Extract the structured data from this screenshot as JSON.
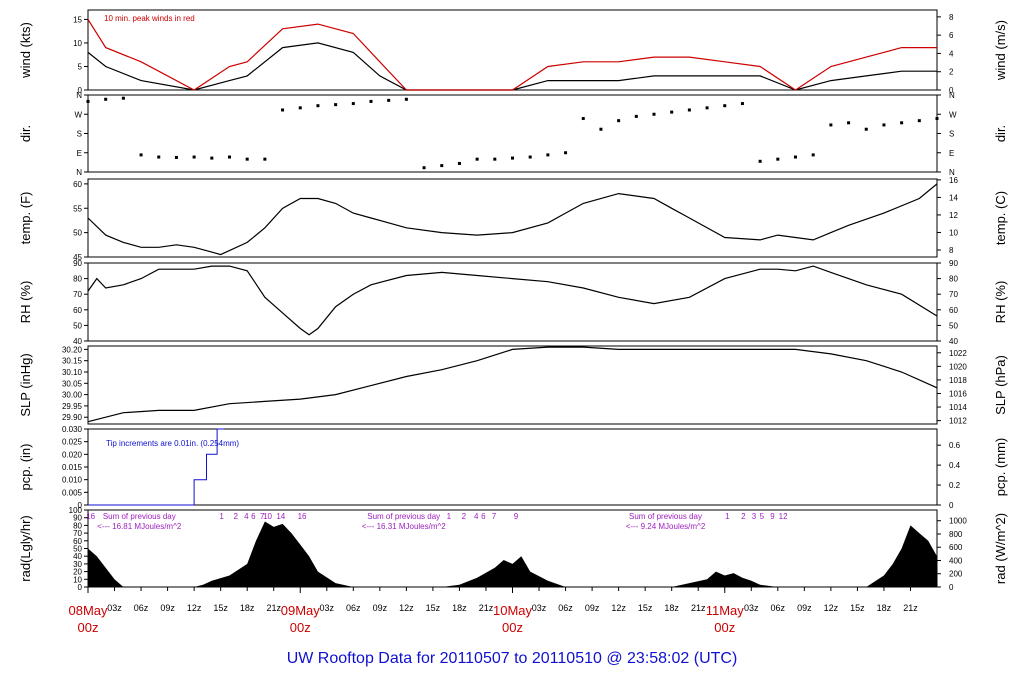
{
  "title": "UW Rooftop Data for 20110507  to  20110510 @ 23:58:02  (UTC)",
  "colors": {
    "black": "#000000",
    "red": "#cc0000",
    "blue": "#1010d0",
    "purple": "#a020c0"
  },
  "chart_data": [
    {
      "type": "line",
      "id": "wind",
      "ylabel": "wind (kts)",
      "ylabel2": "wind (m/s)",
      "ylim": [
        0,
        17
      ],
      "yticks": [
        0,
        5,
        10,
        15
      ],
      "ylim2": [
        0,
        8.75
      ],
      "yticks2": [
        0,
        2,
        4,
        6,
        8
      ],
      "annotation": "10 min. peak winds in red",
      "series": [
        {
          "color": "#000000",
          "x": [
            0,
            2,
            6,
            12,
            16,
            18,
            22,
            26,
            30,
            33,
            36,
            40,
            44,
            48,
            52,
            56,
            60,
            64,
            68,
            72,
            76,
            80,
            84,
            88,
            92,
            96
          ],
          "values": [
            8,
            5,
            2,
            0,
            2,
            3,
            9,
            10,
            8,
            3,
            0,
            0,
            0,
            0,
            2,
            2,
            2,
            3,
            3,
            3,
            3,
            0,
            2,
            3,
            4,
            4
          ]
        },
        {
          "color": "#cc0000",
          "x": [
            0,
            2,
            6,
            12,
            16,
            18,
            22,
            26,
            30,
            33,
            36,
            40,
            44,
            48,
            52,
            56,
            60,
            64,
            68,
            72,
            76,
            80,
            84,
            88,
            92,
            96
          ],
          "values": [
            15,
            9,
            6,
            0,
            5,
            6,
            13,
            14,
            12,
            6,
            0,
            0,
            0,
            0,
            5,
            6,
            6,
            7,
            7,
            6,
            5,
            0,
            5,
            7,
            9,
            9
          ]
        }
      ]
    },
    {
      "type": "scatter",
      "id": "dir",
      "ylabel": "dir.",
      "ylabel2": "dir.",
      "ylim": [
        0,
        360
      ],
      "yticks": [
        0,
        90,
        180,
        270,
        360
      ],
      "ytick_labels": [
        "N",
        "E",
        "S",
        "W",
        "N"
      ],
      "x": [
        0,
        2,
        4,
        6,
        8,
        10,
        12,
        14,
        16,
        18,
        20,
        22,
        24,
        26,
        28,
        30,
        32,
        34,
        36,
        38,
        40,
        42,
        44,
        46,
        48,
        50,
        52,
        54,
        56,
        58,
        60,
        62,
        64,
        66,
        68,
        70,
        72,
        74,
        76,
        78,
        80,
        82,
        84,
        86,
        88,
        90,
        92,
        94,
        96
      ],
      "values": [
        330,
        340,
        345,
        80,
        70,
        68,
        70,
        65,
        70,
        60,
        60,
        290,
        300,
        310,
        315,
        320,
        330,
        335,
        340,
        20,
        30,
        40,
        60,
        60,
        65,
        70,
        80,
        90,
        250,
        200,
        240,
        260,
        270,
        280,
        290,
        300,
        310,
        320,
        50,
        60,
        70,
        80,
        220,
        230,
        200,
        220,
        230,
        240,
        250
      ]
    },
    {
      "type": "line",
      "id": "temp",
      "ylabel": "temp. (F)",
      "ylabel2": "temp. (C)",
      "ylim": [
        45,
        61
      ],
      "yticks": [
        45,
        50,
        55,
        60
      ],
      "ylim2": [
        7.2,
        16.1
      ],
      "yticks2": [
        8,
        10,
        12,
        14,
        16
      ],
      "x": [
        0,
        2,
        4,
        6,
        8,
        10,
        12,
        14,
        15,
        18,
        20,
        22,
        24,
        26,
        28,
        30,
        32,
        36,
        40,
        44,
        48,
        52,
        54,
        56,
        60,
        64,
        66,
        68,
        72,
        76,
        78,
        80,
        82,
        84,
        86,
        90,
        94,
        96
      ],
      "values": [
        53,
        49.5,
        48,
        47,
        47,
        47.5,
        47,
        46,
        45.5,
        48,
        51,
        55,
        57,
        57,
        56,
        54,
        53,
        51,
        50,
        49.5,
        50,
        52,
        54,
        56,
        58,
        57,
        55,
        53,
        49,
        48.5,
        49.5,
        49,
        48.5,
        50,
        51.5,
        54,
        57,
        60
      ]
    },
    {
      "type": "line",
      "id": "rh",
      "ylabel": "RH (%)",
      "ylabel2": "RH (%)",
      "ylim": [
        40,
        90
      ],
      "yticks": [
        40,
        50,
        60,
        70,
        80,
        90
      ],
      "x": [
        0,
        1,
        2,
        4,
        6,
        8,
        10,
        12,
        14,
        16,
        18,
        20,
        22,
        24,
        25,
        26,
        28,
        30,
        32,
        36,
        40,
        44,
        48,
        52,
        56,
        60,
        64,
        68,
        72,
        76,
        78,
        80,
        82,
        84,
        88,
        92,
        96
      ],
      "values": [
        72,
        80,
        74,
        76,
        80,
        86,
        86,
        86,
        88,
        88,
        85,
        68,
        58,
        48,
        44,
        48,
        62,
        70,
        76,
        82,
        84,
        82,
        80,
        78,
        74,
        68,
        64,
        68,
        80,
        86,
        86,
        85,
        88,
        84,
        76,
        70,
        56
      ]
    },
    {
      "type": "line",
      "id": "slp",
      "ylabel": "SLP (inHg)",
      "ylabel2": "SLP (hPa)",
      "ylim": [
        29.87,
        30.215
      ],
      "yticks": [
        29.9,
        29.95,
        30.0,
        30.05,
        30.1,
        30.15,
        30.2
      ],
      "ytick_labels": [
        "29.90",
        "29.95",
        "30.00",
        "30.05",
        "30.10",
        "30.15",
        "30.20"
      ],
      "ylim2": [
        1011.5,
        1023.0
      ],
      "yticks2": [
        1012,
        1014,
        1016,
        1018,
        1020,
        1022
      ],
      "x": [
        0,
        4,
        8,
        12,
        16,
        20,
        24,
        28,
        32,
        36,
        40,
        44,
        48,
        52,
        56,
        60,
        64,
        68,
        72,
        76,
        80,
        84,
        88,
        92,
        96
      ],
      "values": [
        29.88,
        29.92,
        29.93,
        29.93,
        29.96,
        29.97,
        29.98,
        30.0,
        30.04,
        30.08,
        30.11,
        30.15,
        30.2,
        30.21,
        30.21,
        30.2,
        30.2,
        30.2,
        30.2,
        30.2,
        30.2,
        30.18,
        30.15,
        30.1,
        30.03
      ]
    },
    {
      "type": "line",
      "id": "pcp",
      "ylabel": "pcp. (in)",
      "ylabel2": "pcp. (mm)",
      "ylim": [
        0,
        0.03
      ],
      "yticks": [
        0,
        0.005,
        0.01,
        0.015,
        0.02,
        0.025,
        0.03
      ],
      "ytick_labels": [
        "0",
        "0.005",
        "0.010",
        "0.015",
        "0.020",
        "0.025",
        "0.030"
      ],
      "ylim2": [
        0,
        0.762
      ],
      "yticks2": [
        0,
        0.2,
        0.4,
        0.6
      ],
      "annotation": "Tip increments are 0.01in. (0.254mm)",
      "x": [
        0,
        12.0,
        12.0,
        13.4,
        13.4,
        14.6,
        14.6,
        15.4,
        15.4
      ],
      "values": [
        0,
        0,
        0.01,
        0.01,
        0.02,
        0.02,
        0.03,
        0.03,
        0.03
      ]
    },
    {
      "type": "area",
      "id": "rad",
      "ylabel": "rad(Lgly/hr)",
      "ylabel2": "rad (W/m^2)",
      "ylim": [
        0,
        100
      ],
      "yticks": [
        0,
        10,
        20,
        30,
        40,
        50,
        60,
        70,
        80,
        90,
        100
      ],
      "ylim2": [
        0,
        1162
      ],
      "yticks2": [
        0,
        200,
        400,
        600,
        800,
        1000
      ],
      "x": [
        0,
        1,
        3,
        4,
        12,
        13,
        14,
        16,
        18,
        19,
        20,
        21,
        22,
        23,
        24,
        25,
        26,
        28,
        30,
        36,
        40,
        42,
        44,
        46,
        47,
        48,
        49,
        50,
        52,
        54,
        60,
        66,
        68,
        70,
        71,
        72,
        73,
        74,
        75,
        76,
        78,
        84,
        88,
        90,
        91,
        92,
        93,
        94,
        95,
        96
      ],
      "values": [
        50,
        40,
        10,
        0,
        0,
        3,
        8,
        15,
        30,
        60,
        85,
        78,
        82,
        70,
        55,
        40,
        20,
        5,
        0,
        0,
        0,
        3,
        12,
        25,
        35,
        30,
        40,
        20,
        8,
        0,
        0,
        0,
        5,
        10,
        20,
        15,
        18,
        12,
        8,
        3,
        0,
        0,
        0,
        15,
        30,
        50,
        80,
        70,
        60,
        40
      ],
      "hourly_labels": [
        {
          "x": 0.3,
          "label": "16"
        },
        {
          "x": 15.1,
          "label": "1"
        },
        {
          "x": 16.7,
          "label": "2"
        },
        {
          "x": 17.9,
          "label": "4"
        },
        {
          "x": 18.7,
          "label": "6"
        },
        {
          "x": 19.7,
          "label": "7"
        },
        {
          "x": 20.3,
          "label": "10"
        },
        {
          "x": 21.8,
          "label": "14"
        },
        {
          "x": 24.2,
          "label": "16"
        },
        {
          "x": 40.8,
          "label": "1"
        },
        {
          "x": 42.5,
          "label": "2"
        },
        {
          "x": 43.9,
          "label": "4"
        },
        {
          "x": 44.7,
          "label": "6"
        },
        {
          "x": 45.9,
          "label": "7"
        },
        {
          "x": 48.4,
          "label": "9"
        },
        {
          "x": 72.3,
          "label": "1"
        },
        {
          "x": 74.1,
          "label": "2"
        },
        {
          "x": 75.3,
          "label": "3"
        },
        {
          "x": 76.2,
          "label": "5"
        },
        {
          "x": 77.4,
          "label": "9"
        },
        {
          "x": 78.6,
          "label": "12"
        }
      ],
      "annotations": [
        {
          "x": 5.8,
          "line1": "Sum of previous day",
          "line2": "<--- 16.81 MJoules/m^2"
        },
        {
          "x": 35.7,
          "line1": "Sum of previous day",
          "line2": "<--- 16.31 MJoules/m^2"
        },
        {
          "x": 65.3,
          "line1": "Sum of previous day",
          "line2": "<--- 9.24 MJoules/m^2"
        }
      ]
    }
  ],
  "x_axis": {
    "xlim": [
      0,
      96
    ],
    "hour_labels": [
      {
        "x": 3,
        "label": "03z"
      },
      {
        "x": 6,
        "label": "06z"
      },
      {
        "x": 9,
        "label": "09z"
      },
      {
        "x": 12,
        "label": "12z"
      },
      {
        "x": 15,
        "label": "15z"
      },
      {
        "x": 18,
        "label": "18z"
      },
      {
        "x": 21,
        "label": "21z"
      },
      {
        "x": 27,
        "label": "03z"
      },
      {
        "x": 30,
        "label": "06z"
      },
      {
        "x": 33,
        "label": "09z"
      },
      {
        "x": 36,
        "label": "12z"
      },
      {
        "x": 39,
        "label": "15z"
      },
      {
        "x": 42,
        "label": "18z"
      },
      {
        "x": 45,
        "label": "21z"
      },
      {
        "x": 51,
        "label": "03z"
      },
      {
        "x": 54,
        "label": "06z"
      },
      {
        "x": 57,
        "label": "09z"
      },
      {
        "x": 60,
        "label": "12z"
      },
      {
        "x": 63,
        "label": "15z"
      },
      {
        "x": 66,
        "label": "18z"
      },
      {
        "x": 69,
        "label": "21z"
      },
      {
        "x": 75,
        "label": "03z"
      },
      {
        "x": 78,
        "label": "06z"
      },
      {
        "x": 81,
        "label": "09z"
      },
      {
        "x": 84,
        "label": "12z"
      },
      {
        "x": 87,
        "label": "15z"
      },
      {
        "x": 90,
        "label": "18z"
      },
      {
        "x": 93,
        "label": "21z"
      }
    ],
    "day_labels": [
      {
        "x": 0,
        "line1": "08May",
        "line2": "00z"
      },
      {
        "x": 24,
        "line1": "09May",
        "line2": "00z"
      },
      {
        "x": 48,
        "line1": "10May",
        "line2": "00z"
      },
      {
        "x": 72,
        "line1": "11May",
        "line2": "00z"
      }
    ]
  }
}
